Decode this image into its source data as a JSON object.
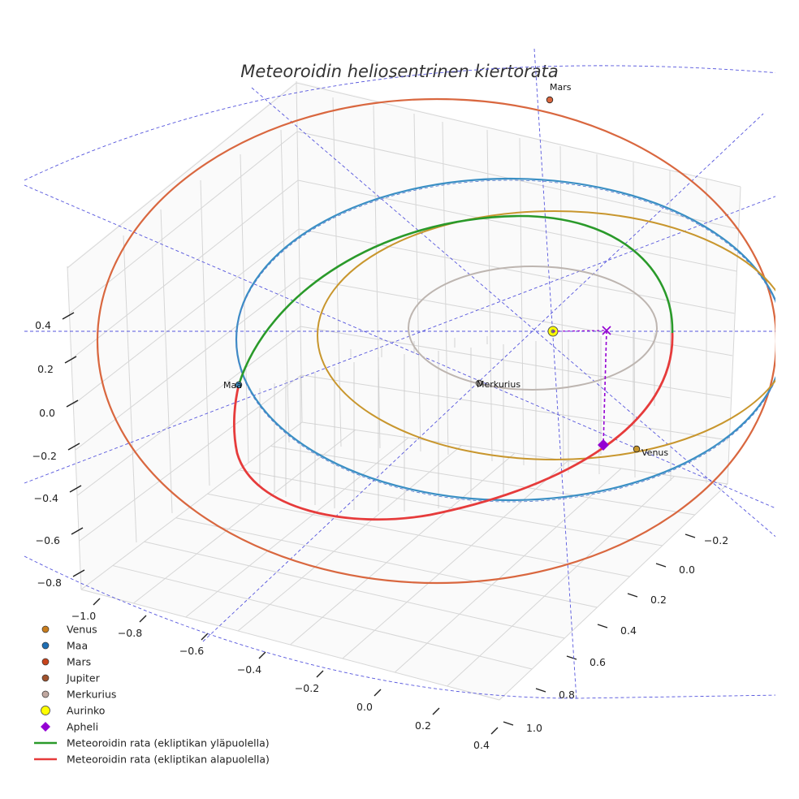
{
  "chart_data": {
    "type": "line",
    "title": "Meteoroidin heliosentrinen kiertorata",
    "axes": {
      "z_ticks": [
        "0.4",
        "0.2",
        "0.0",
        "−0.2",
        "−0.4",
        "−0.6",
        "−0.8"
      ],
      "x_ticks": [
        "−1.0",
        "−0.8",
        "−0.6",
        "−0.4",
        "−0.2",
        "0.0",
        "0.2",
        "0.4"
      ],
      "y_ticks": [
        "−0.2",
        "0.0",
        "0.2",
        "0.4",
        "0.6",
        "0.8",
        "1.0"
      ],
      "grid": true
    },
    "planets": [
      {
        "name": "Venus",
        "label": "Venus",
        "color": "#c8962d"
      },
      {
        "name": "Maa",
        "label": "Maa",
        "color": "#3a8fc4"
      },
      {
        "name": "Mars",
        "label": "Mars",
        "color": "#d9673f"
      },
      {
        "name": "Merkurius",
        "label": "Merkurius",
        "color": "#bdb5b0"
      }
    ],
    "sun": {
      "name": "Aurinko",
      "color": "#ffff00"
    },
    "aphelion": {
      "name": "Apheli",
      "color": "#9400d3"
    },
    "meteoroid": {
      "above_color": "#2a9a2a",
      "below_color": "#e63b3b"
    },
    "legend": [
      {
        "label": "Venus",
        "marker": "circle",
        "color": "#c87d1e"
      },
      {
        "label": "Maa",
        "marker": "circle",
        "color": "#1f6fb4"
      },
      {
        "label": "Mars",
        "marker": "circle",
        "color": "#c8441c"
      },
      {
        "label": "Jupiter",
        "marker": "circle",
        "color": "#a0522d"
      },
      {
        "label": "Merkurius",
        "marker": "circle",
        "color": "#c0a8a0"
      },
      {
        "label": "Aurinko",
        "marker": "circle",
        "color": "#ffff00"
      },
      {
        "label": "Apheli",
        "marker": "diamond",
        "color": "#9400d3"
      },
      {
        "label": "Meteoroidin rata (ekliptikan yläpuolella)",
        "marker": "line",
        "color": "#2a9a2a"
      },
      {
        "label": "Meteoroidin rata (ekliptikan alapuolella)",
        "marker": "line",
        "color": "#e63b3b"
      }
    ],
    "legend_position": "bottom-left"
  }
}
